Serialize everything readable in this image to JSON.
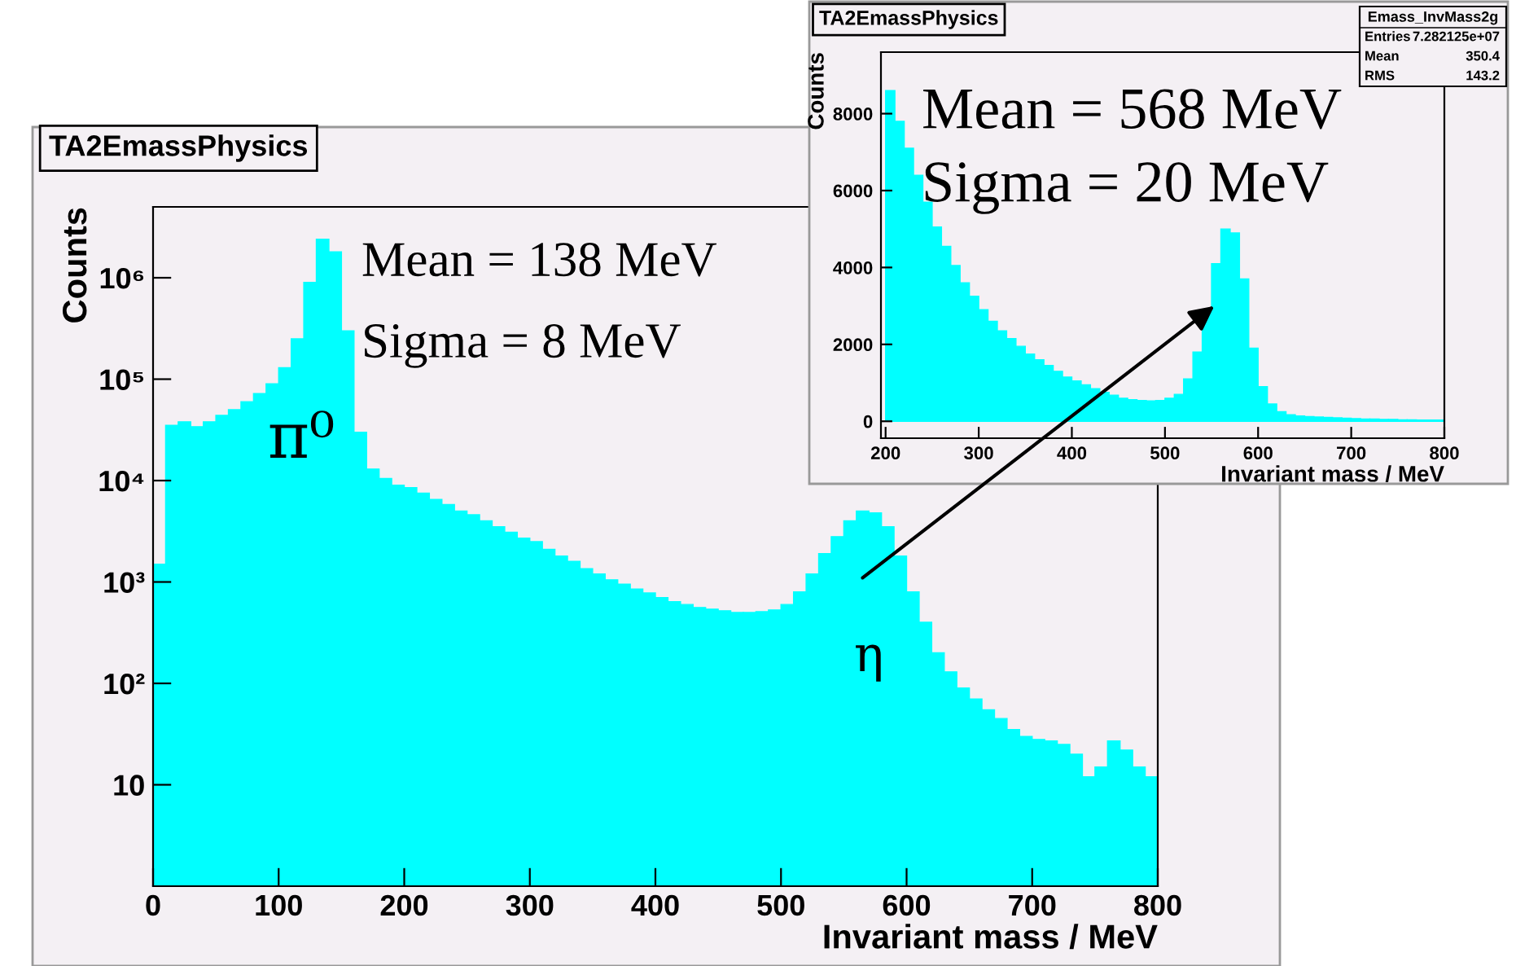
{
  "chart_data": [
    {
      "type": "histogram",
      "title": "TA2EmassPhysics",
      "xlabel": "Invariant mass / MeV",
      "ylabel": "Counts",
      "color": "#00ffff",
      "log": "y",
      "bins": [
        0,
        10,
        20,
        30,
        40,
        50,
        60,
        70,
        80,
        90,
        100,
        110,
        120,
        130,
        140,
        150,
        160,
        170,
        180,
        190,
        200,
        210,
        220,
        230,
        240,
        250,
        260,
        270,
        280,
        290,
        300,
        310,
        320,
        330,
        340,
        350,
        360,
        370,
        380,
        390,
        400,
        410,
        420,
        430,
        440,
        450,
        460,
        470,
        480,
        490,
        500,
        510,
        520,
        530,
        540,
        550,
        560,
        570,
        580,
        590,
        600,
        610,
        620,
        630,
        640,
        650,
        660,
        670,
        680,
        690,
        700,
        710,
        720,
        730,
        740,
        750,
        760,
        770,
        780,
        790,
        800
      ],
      "values": [
        1500,
        35000,
        38000,
        34000,
        38000,
        44000,
        50000,
        60000,
        72000,
        90000,
        130000,
        250000,
        900000,
        2400000,
        1800000,
        300000,
        30000,
        13000,
        10500,
        9000,
        8500,
        7500,
        6500,
        5800,
        5000,
        4600,
        4000,
        3500,
        3100,
        2700,
        2500,
        2100,
        1800,
        1600,
        1350,
        1200,
        1050,
        950,
        850,
        780,
        700,
        640,
        600,
        560,
        540,
        520,
        500,
        500,
        510,
        530,
        600,
        800,
        1200,
        1900,
        2800,
        4000,
        5000,
        4800,
        3500,
        1800,
        800,
        400,
        200,
        130,
        90,
        70,
        55,
        45,
        35,
        30,
        28,
        27,
        25,
        20,
        12,
        15,
        27,
        22,
        15,
        12
      ],
      "xlim": [
        0,
        800
      ],
      "xticks": [
        0,
        100,
        200,
        300,
        400,
        500,
        600,
        700,
        800
      ],
      "ylim": [
        1,
        5000000
      ],
      "yticks": [
        10,
        {
          "value": 100,
          "label": "10²"
        },
        {
          "value": 1000,
          "label": "10³"
        },
        {
          "value": 10000,
          "label": "10⁴"
        },
        {
          "value": 100000,
          "label": "10⁵"
        },
        {
          "value": 1000000,
          "label": "10⁶"
        }
      ],
      "annotations": [
        "Mean = 138 MeV",
        "Sigma = 8 MeV",
        {
          "text": "π⁰",
          "x": 118,
          "y": 25000
        },
        {
          "text": "η",
          "x": 570,
          "y": 180
        }
      ]
    },
    {
      "type": "histogram",
      "title": "TA2EmassPhysics",
      "xlabel": "Invariant mass / MeV",
      "ylabel": "Counts",
      "color": "#00ffff",
      "bins": [
        200,
        210,
        220,
        230,
        240,
        250,
        260,
        270,
        280,
        290,
        300,
        310,
        320,
        330,
        340,
        350,
        360,
        370,
        380,
        390,
        400,
        410,
        420,
        430,
        440,
        450,
        460,
        470,
        480,
        490,
        500,
        510,
        520,
        530,
        540,
        550,
        560,
        570,
        580,
        590,
        600,
        610,
        620,
        630,
        640,
        650,
        660,
        670,
        680,
        690,
        700,
        710,
        720,
        730,
        740,
        750,
        760,
        770,
        780,
        790,
        800
      ],
      "values": [
        8600,
        7800,
        7100,
        6400,
        5700,
        5050,
        4550,
        4050,
        3600,
        3250,
        2900,
        2600,
        2350,
        2150,
        1950,
        1750,
        1600,
        1450,
        1300,
        1150,
        1050,
        950,
        850,
        750,
        680,
        600,
        560,
        540,
        530,
        540,
        600,
        700,
        1100,
        1800,
        2900,
        4100,
        5000,
        4900,
        3700,
        1900,
        900,
        450,
        250,
        170,
        140,
        120,
        110,
        100,
        90,
        80,
        70,
        60,
        60,
        50,
        50,
        40,
        40,
        30,
        30,
        30
      ],
      "xlim": [
        195,
        800
      ],
      "xticks": [
        200,
        300,
        400,
        500,
        600,
        700,
        800
      ],
      "ylim": [
        -440,
        9600
      ],
      "yticks": [
        0,
        2000,
        4000,
        6000,
        8000
      ],
      "annotations": [
        "Mean = 568 MeV",
        "Sigma = 20 MeV",
        "Emass_InvMass2g",
        "Entries",
        "7.282125e+07",
        "Mean",
        "350.4",
        "RMS",
        "143.2"
      ]
    }
  ]
}
